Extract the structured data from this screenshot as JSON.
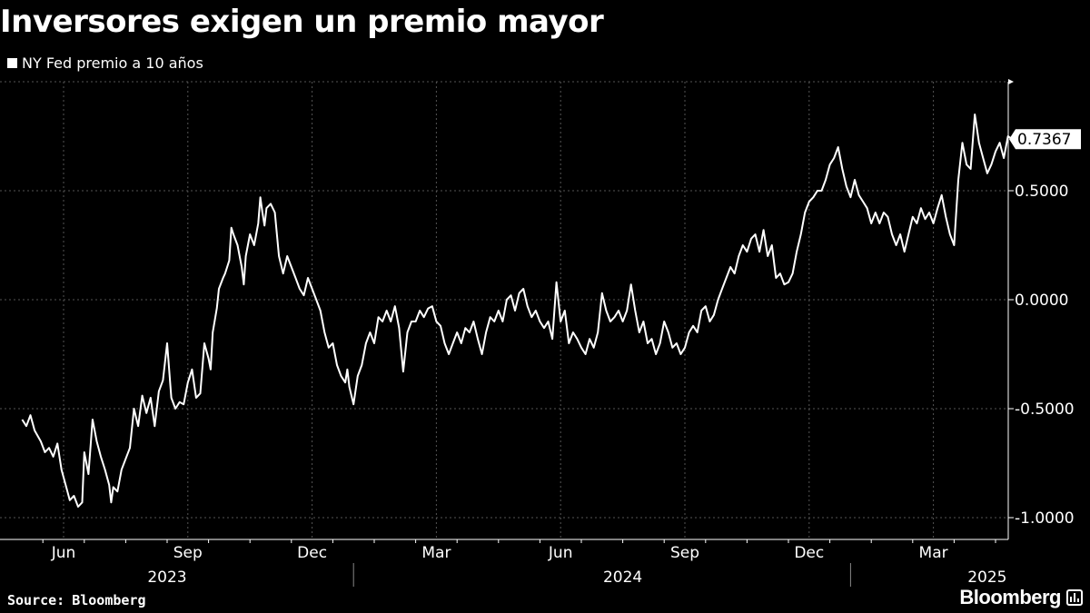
{
  "title": "Inversores exigen un premio mayor",
  "legend": {
    "label": "NY Fed premio a 10 años"
  },
  "source": {
    "label": "Source:",
    "value": "Bloomberg"
  },
  "brand": {
    "name": "Bloomberg"
  },
  "colors": {
    "background": "#000000",
    "line": "#ffffff",
    "grid": "#555555"
  },
  "chart_data": {
    "type": "line",
    "title": "Inversores exigen un premio mayor",
    "xlabel": "",
    "ylabel": "",
    "ylim": [
      -1.1,
      1.0
    ],
    "y_ticks": [
      -1.0,
      -0.5,
      0.0,
      0.5
    ],
    "y_tick_labels": [
      "-1.0000",
      "-0.5000",
      "0.0000",
      "0.5000"
    ],
    "x_ticks": [
      {
        "label": "Jun",
        "month": 1
      },
      {
        "label": "Sep",
        "month": 4
      },
      {
        "label": "Dec",
        "month": 7
      },
      {
        "label": "Mar",
        "month": 10
      },
      {
        "label": "Jun",
        "month": 13
      },
      {
        "label": "Sep",
        "month": 16
      },
      {
        "label": "Dec",
        "month": 19
      },
      {
        "label": "Mar",
        "month": 22
      }
    ],
    "years": [
      {
        "label": "2023",
        "center_month": 3.5
      },
      {
        "label": "2024",
        "center_month": 14.5
      },
      {
        "label": "2025",
        "center_month": 23.3
      }
    ],
    "year_dividers": [
      7.5,
      19.5
    ],
    "x_range": [
      0,
      24.95
    ],
    "grid": true,
    "last_value_label": "0.7367",
    "series": [
      {
        "name": "NY Fed premio a 10 años",
        "points": [
          [
            0.0,
            -0.55
          ],
          [
            0.1,
            -0.58
          ],
          [
            0.2,
            -0.53
          ],
          [
            0.3,
            -0.6
          ],
          [
            0.45,
            -0.65
          ],
          [
            0.55,
            -0.7
          ],
          [
            0.65,
            -0.68
          ],
          [
            0.75,
            -0.72
          ],
          [
            0.85,
            -0.66
          ],
          [
            0.95,
            -0.78
          ],
          [
            1.05,
            -0.85
          ],
          [
            1.15,
            -0.92
          ],
          [
            1.25,
            -0.9
          ],
          [
            1.35,
            -0.95
          ],
          [
            1.45,
            -0.93
          ],
          [
            1.5,
            -0.7
          ],
          [
            1.6,
            -0.8
          ],
          [
            1.7,
            -0.55
          ],
          [
            1.8,
            -0.65
          ],
          [
            1.9,
            -0.72
          ],
          [
            2.0,
            -0.78
          ],
          [
            2.1,
            -0.85
          ],
          [
            2.15,
            -0.93
          ],
          [
            2.2,
            -0.86
          ],
          [
            2.3,
            -0.88
          ],
          [
            2.4,
            -0.78
          ],
          [
            2.5,
            -0.73
          ],
          [
            2.6,
            -0.68
          ],
          [
            2.7,
            -0.5
          ],
          [
            2.8,
            -0.58
          ],
          [
            2.9,
            -0.44
          ],
          [
            3.0,
            -0.52
          ],
          [
            3.1,
            -0.45
          ],
          [
            3.2,
            -0.58
          ],
          [
            3.3,
            -0.42
          ],
          [
            3.4,
            -0.37
          ],
          [
            3.5,
            -0.2
          ],
          [
            3.6,
            -0.45
          ],
          [
            3.7,
            -0.5
          ],
          [
            3.8,
            -0.47
          ],
          [
            3.9,
            -0.48
          ],
          [
            4.0,
            -0.38
          ],
          [
            4.1,
            -0.32
          ],
          [
            4.2,
            -0.45
          ],
          [
            4.3,
            -0.43
          ],
          [
            4.4,
            -0.2
          ],
          [
            4.5,
            -0.27
          ],
          [
            4.55,
            -0.32
          ],
          [
            4.6,
            -0.15
          ],
          [
            4.7,
            -0.04
          ],
          [
            4.75,
            0.05
          ],
          [
            4.85,
            0.1
          ],
          [
            4.9,
            0.12
          ],
          [
            5.0,
            0.18
          ],
          [
            5.05,
            0.33
          ],
          [
            5.1,
            0.3
          ],
          [
            5.2,
            0.25
          ],
          [
            5.3,
            0.15
          ],
          [
            5.35,
            0.07
          ],
          [
            5.4,
            0.2
          ],
          [
            5.5,
            0.3
          ],
          [
            5.6,
            0.25
          ],
          [
            5.7,
            0.35
          ],
          [
            5.75,
            0.47
          ],
          [
            5.8,
            0.4
          ],
          [
            5.85,
            0.34
          ],
          [
            5.9,
            0.42
          ],
          [
            6.0,
            0.44
          ],
          [
            6.1,
            0.4
          ],
          [
            6.2,
            0.2
          ],
          [
            6.3,
            0.12
          ],
          [
            6.4,
            0.2
          ],
          [
            6.5,
            0.15
          ],
          [
            6.6,
            0.1
          ],
          [
            6.7,
            0.05
          ],
          [
            6.8,
            0.02
          ],
          [
            6.9,
            0.1
          ],
          [
            7.0,
            0.05
          ],
          [
            7.1,
            0.0
          ],
          [
            7.2,
            -0.05
          ],
          [
            7.3,
            -0.15
          ],
          [
            7.4,
            -0.22
          ],
          [
            7.5,
            -0.2
          ],
          [
            7.6,
            -0.3
          ],
          [
            7.7,
            -0.35
          ],
          [
            7.8,
            -0.38
          ],
          [
            7.85,
            -0.32
          ],
          [
            7.9,
            -0.4
          ],
          [
            8.0,
            -0.48
          ],
          [
            8.1,
            -0.35
          ],
          [
            8.2,
            -0.3
          ],
          [
            8.3,
            -0.2
          ],
          [
            8.4,
            -0.15
          ],
          [
            8.5,
            -0.2
          ],
          [
            8.6,
            -0.08
          ],
          [
            8.7,
            -0.1
          ],
          [
            8.8,
            -0.05
          ],
          [
            8.9,
            -0.1
          ],
          [
            9.0,
            -0.03
          ],
          [
            9.1,
            -0.13
          ],
          [
            9.2,
            -0.33
          ],
          [
            9.3,
            -0.15
          ],
          [
            9.4,
            -0.1
          ],
          [
            9.5,
            -0.1
          ],
          [
            9.6,
            -0.05
          ],
          [
            9.7,
            -0.08
          ],
          [
            9.8,
            -0.04
          ],
          [
            9.9,
            -0.03
          ],
          [
            10.0,
            -0.1
          ],
          [
            10.1,
            -0.12
          ],
          [
            10.2,
            -0.2
          ],
          [
            10.3,
            -0.25
          ],
          [
            10.4,
            -0.2
          ],
          [
            10.5,
            -0.15
          ],
          [
            10.6,
            -0.2
          ],
          [
            10.7,
            -0.13
          ],
          [
            10.8,
            -0.15
          ],
          [
            10.9,
            -0.1
          ],
          [
            11.0,
            -0.18
          ],
          [
            11.1,
            -0.25
          ],
          [
            11.2,
            -0.15
          ],
          [
            11.3,
            -0.08
          ],
          [
            11.4,
            -0.1
          ],
          [
            11.5,
            -0.05
          ],
          [
            11.6,
            -0.1
          ],
          [
            11.7,
            0.0
          ],
          [
            11.8,
            0.02
          ],
          [
            11.9,
            -0.05
          ],
          [
            12.0,
            0.03
          ],
          [
            12.1,
            0.05
          ],
          [
            12.2,
            -0.03
          ],
          [
            12.3,
            -0.08
          ],
          [
            12.4,
            -0.05
          ],
          [
            12.5,
            -0.1
          ],
          [
            12.6,
            -0.13
          ],
          [
            12.7,
            -0.1
          ],
          [
            12.8,
            -0.18
          ],
          [
            12.9,
            0.08
          ],
          [
            13.0,
            -0.1
          ],
          [
            13.1,
            -0.05
          ],
          [
            13.2,
            -0.2
          ],
          [
            13.3,
            -0.15
          ],
          [
            13.4,
            -0.18
          ],
          [
            13.5,
            -0.22
          ],
          [
            13.6,
            -0.25
          ],
          [
            13.7,
            -0.18
          ],
          [
            13.8,
            -0.22
          ],
          [
            13.9,
            -0.15
          ],
          [
            14.0,
            0.03
          ],
          [
            14.1,
            -0.05
          ],
          [
            14.2,
            -0.1
          ],
          [
            14.3,
            -0.08
          ],
          [
            14.4,
            -0.05
          ],
          [
            14.5,
            -0.1
          ],
          [
            14.6,
            -0.05
          ],
          [
            14.7,
            0.07
          ],
          [
            14.8,
            -0.05
          ],
          [
            14.9,
            -0.15
          ],
          [
            15.0,
            -0.1
          ],
          [
            15.1,
            -0.2
          ],
          [
            15.2,
            -0.18
          ],
          [
            15.3,
            -0.25
          ],
          [
            15.4,
            -0.2
          ],
          [
            15.5,
            -0.1
          ],
          [
            15.6,
            -0.15
          ],
          [
            15.7,
            -0.22
          ],
          [
            15.8,
            -0.2
          ],
          [
            15.9,
            -0.25
          ],
          [
            16.0,
            -0.22
          ],
          [
            16.1,
            -0.15
          ],
          [
            16.2,
            -0.12
          ],
          [
            16.3,
            -0.15
          ],
          [
            16.4,
            -0.05
          ],
          [
            16.5,
            -0.03
          ],
          [
            16.6,
            -0.1
          ],
          [
            16.7,
            -0.07
          ],
          [
            16.8,
            0.0
          ],
          [
            16.9,
            0.05
          ],
          [
            17.0,
            0.1
          ],
          [
            17.1,
            0.15
          ],
          [
            17.2,
            0.12
          ],
          [
            17.3,
            0.2
          ],
          [
            17.4,
            0.25
          ],
          [
            17.5,
            0.22
          ],
          [
            17.6,
            0.28
          ],
          [
            17.7,
            0.3
          ],
          [
            17.8,
            0.22
          ],
          [
            17.9,
            0.32
          ],
          [
            18.0,
            0.2
          ],
          [
            18.1,
            0.25
          ],
          [
            18.2,
            0.1
          ],
          [
            18.3,
            0.12
          ],
          [
            18.4,
            0.07
          ],
          [
            18.5,
            0.08
          ],
          [
            18.6,
            0.12
          ],
          [
            18.7,
            0.22
          ],
          [
            18.8,
            0.3
          ],
          [
            18.9,
            0.4
          ],
          [
            19.0,
            0.45
          ],
          [
            19.1,
            0.47
          ],
          [
            19.2,
            0.5
          ],
          [
            19.3,
            0.5
          ],
          [
            19.4,
            0.55
          ],
          [
            19.5,
            0.62
          ],
          [
            19.6,
            0.65
          ],
          [
            19.7,
            0.7
          ],
          [
            19.8,
            0.6
          ],
          [
            19.9,
            0.52
          ],
          [
            20.0,
            0.47
          ],
          [
            20.1,
            0.55
          ],
          [
            20.2,
            0.48
          ],
          [
            20.3,
            0.45
          ],
          [
            20.4,
            0.42
          ],
          [
            20.5,
            0.35
          ],
          [
            20.6,
            0.4
          ],
          [
            20.7,
            0.35
          ],
          [
            20.8,
            0.4
          ],
          [
            20.9,
            0.38
          ],
          [
            21.0,
            0.3
          ],
          [
            21.1,
            0.25
          ],
          [
            21.2,
            0.3
          ],
          [
            21.3,
            0.22
          ],
          [
            21.4,
            0.3
          ],
          [
            21.5,
            0.38
          ],
          [
            21.6,
            0.35
          ],
          [
            21.7,
            0.42
          ],
          [
            21.8,
            0.37
          ],
          [
            21.9,
            0.4
          ],
          [
            22.0,
            0.35
          ],
          [
            22.1,
            0.42
          ],
          [
            22.2,
            0.48
          ],
          [
            22.3,
            0.38
          ],
          [
            22.4,
            0.3
          ],
          [
            22.5,
            0.25
          ],
          [
            22.6,
            0.55
          ],
          [
            22.7,
            0.72
          ],
          [
            22.8,
            0.62
          ],
          [
            22.9,
            0.6
          ],
          [
            23.0,
            0.85
          ],
          [
            23.1,
            0.72
          ],
          [
            23.2,
            0.65
          ],
          [
            23.3,
            0.58
          ],
          [
            23.4,
            0.62
          ],
          [
            23.5,
            0.68
          ],
          [
            23.6,
            0.72
          ],
          [
            23.7,
            0.65
          ],
          [
            23.8,
            0.75
          ],
          [
            23.9,
            0.7367
          ]
        ]
      }
    ]
  }
}
